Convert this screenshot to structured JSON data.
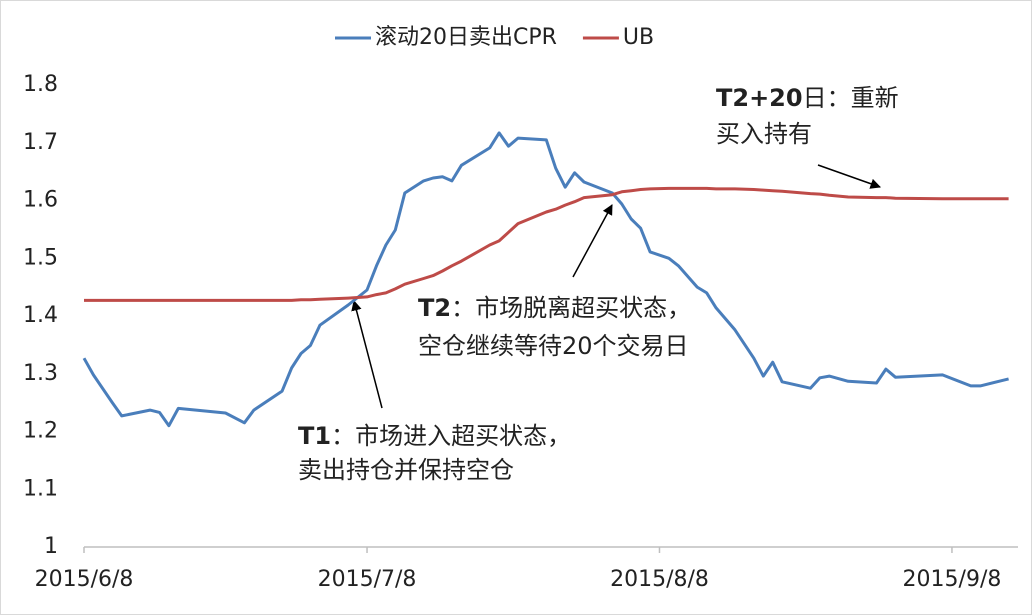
{
  "chart_data": {
    "type": "line",
    "x": [
      "2015/6/8",
      "2015/6/9",
      "2015/6/11",
      "2015/6/12",
      "2015/6/15",
      "2015/6/16",
      "2015/6/17",
      "2015/6/18",
      "2015/6/23",
      "2015/6/25",
      "2015/6/26",
      "2015/6/29",
      "2015/6/30",
      "2015/7/1",
      "2015/7/2",
      "2015/7/3",
      "2015/7/6",
      "2015/7/8",
      "2015/7/9",
      "2015/7/10",
      "2015/7/11",
      "2015/7/12",
      "2015/7/14",
      "2015/7/15",
      "2015/7/16",
      "2015/7/17",
      "2015/7/18",
      "2015/7/21",
      "2015/7/22",
      "2015/7/23",
      "2015/7/24",
      "2015/7/27",
      "2015/7/28",
      "2015/7/29",
      "2015/7/30",
      "2015/7/31",
      "2015/8/3",
      "2015/8/4",
      "2015/8/5",
      "2015/8/6",
      "2015/8/7",
      "2015/8/9",
      "2015/8/10",
      "2015/8/12",
      "2015/8/13",
      "2015/8/14",
      "2015/8/16",
      "2015/8/18",
      "2015/8/19",
      "2015/8/20",
      "2015/8/21",
      "2015/8/24",
      "2015/8/25",
      "2015/8/26",
      "2015/8/28",
      "2015/8/31",
      "2015/9/1",
      "2015/9/2",
      "2015/9/7",
      "2015/9/10",
      "2015/9/11",
      "2015/9/14"
    ],
    "series": [
      {
        "name": "滚动20日卖出CPR",
        "color": "#4a7ebb",
        "values": [
          1.327,
          1.298,
          1.25,
          1.227,
          1.237,
          1.233,
          1.21,
          1.24,
          1.232,
          1.215,
          1.237,
          1.27,
          1.31,
          1.335,
          1.349,
          1.384,
          1.419,
          1.445,
          1.487,
          1.523,
          1.549,
          1.613,
          1.634,
          1.639,
          1.641,
          1.634,
          1.661,
          1.691,
          1.717,
          1.694,
          1.708,
          1.705,
          1.656,
          1.623,
          1.648,
          1.632,
          1.613,
          1.594,
          1.568,
          1.552,
          1.511,
          1.5,
          1.487,
          1.45,
          1.44,
          1.414,
          1.376,
          1.327,
          1.296,
          1.32,
          1.286,
          1.275,
          1.293,
          1.296,
          1.287,
          1.284,
          1.308,
          1.294,
          1.298,
          1.279,
          1.279,
          1.291
        ]
      },
      {
        "name": "UB",
        "color": "#be4b48",
        "values": [
          1.427,
          1.427,
          1.427,
          1.427,
          1.427,
          1.427,
          1.427,
          1.427,
          1.427,
          1.427,
          1.427,
          1.427,
          1.427,
          1.428,
          1.428,
          1.429,
          1.431,
          1.433,
          1.437,
          1.44,
          1.447,
          1.455,
          1.465,
          1.47,
          1.478,
          1.487,
          1.495,
          1.523,
          1.53,
          1.545,
          1.56,
          1.58,
          1.585,
          1.592,
          1.598,
          1.605,
          1.61,
          1.615,
          1.617,
          1.619,
          1.62,
          1.621,
          1.621,
          1.621,
          1.621,
          1.62,
          1.62,
          1.619,
          1.618,
          1.617,
          1.616,
          1.612,
          1.611,
          1.609,
          1.606,
          1.605,
          1.605,
          1.604,
          1.603,
          1.603,
          1.603,
          1.603
        ]
      }
    ],
    "xlim": [
      "2015/6/8",
      "2015/9/15"
    ],
    "xticks": [
      "2015/6/8",
      "2015/7/8",
      "2015/8/8",
      "2015/9/8"
    ],
    "ylim": [
      1,
      1.8
    ],
    "yticks": [
      1,
      1.1,
      1.2,
      1.3,
      1.4,
      1.5,
      1.6,
      1.7,
      1.8
    ],
    "annotations": [
      {
        "label": "T1",
        "text": [
          "：市场进入超买状态，",
          "卖出持仓并保持空仓"
        ]
      },
      {
        "label": "T2",
        "text": [
          "：市场脱离超买状态，",
          "空仓继续等待20个交易日"
        ]
      },
      {
        "label": "T2+20",
        "text": [
          "日：重新",
          "买入持有"
        ]
      }
    ]
  }
}
